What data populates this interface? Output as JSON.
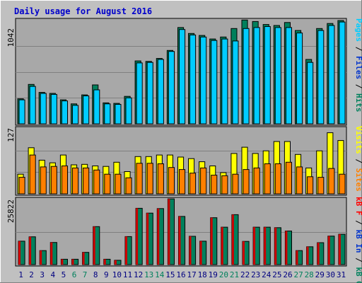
{
  "chart_data": [
    {
      "type": "bar",
      "title": "Daily usage for August 2016",
      "ylabel_max": "1042",
      "ymax": 1042,
      "legend": [
        {
          "label": "Pages",
          "color": "#00ccff"
        },
        {
          "label": "Files",
          "color": "#0033cc"
        },
        {
          "label": "Hits",
          "color": "#00805c"
        }
      ],
      "categories": [
        "1",
        "2",
        "3",
        "4",
        "5",
        "6",
        "7",
        "8",
        "9",
        "10",
        "11",
        "12",
        "13",
        "14",
        "15",
        "16",
        "17",
        "18",
        "19",
        "20",
        "21",
        "22",
        "23",
        "24",
        "25",
        "26",
        "27",
        "28",
        "29",
        "30",
        "31"
      ],
      "weekend_color": "#00805c",
      "weekday_color": "#000080",
      "weekend_days": [
        "6",
        "7",
        "13",
        "14",
        "20",
        "21",
        "27",
        "28"
      ],
      "series": [
        {
          "name": "Hits",
          "color": "#00805c",
          "values": [
            250,
            395,
            315,
            305,
            240,
            200,
            290,
            390,
            210,
            205,
            275,
            630,
            625,
            655,
            735,
            965,
            905,
            885,
            850,
            870,
            955,
            1040,
            1025,
            995,
            985,
            1015,
            935,
            645,
            955,
            1005,
            1035
          ]
        },
        {
          "name": "Files",
          "color": "#00ccff",
          "values": [
            240,
            375,
            305,
            295,
            230,
            185,
            280,
            340,
            200,
            195,
            260,
            610,
            615,
            645,
            725,
            945,
            890,
            870,
            835,
            850,
            830,
            955,
            965,
            975,
            965,
            965,
            910,
            615,
            935,
            985,
            1020
          ]
        }
      ]
    },
    {
      "type": "bar",
      "ylabel_max": "127",
      "ymax": 127,
      "legend": [
        {
          "label": "Visits",
          "color": "#ffff00"
        },
        {
          "label": "Sites",
          "color": "#ff8000"
        }
      ],
      "series": [
        {
          "name": "Visits",
          "color": "#ffff00",
          "values": [
            38,
            89,
            65,
            60,
            75,
            56,
            57,
            54,
            53,
            61,
            43,
            72,
            72,
            75,
            75,
            71,
            68,
            62,
            54,
            41,
            78,
            90,
            78,
            83,
            101,
            101,
            76,
            50,
            83,
            118,
            103
          ]
        },
        {
          "name": "Sites",
          "color": "#ff8000",
          "values": [
            32,
            75,
            52,
            53,
            54,
            50,
            50,
            46,
            38,
            38,
            31,
            59,
            59,
            58,
            51,
            47,
            40,
            50,
            36,
            35,
            38,
            47,
            50,
            58,
            58,
            61,
            52,
            33,
            32,
            49,
            38
          ]
        }
      ]
    },
    {
      "type": "bar",
      "ylabel_max": "25822",
      "ymax": 25822,
      "legend": [
        {
          "label": "kB F",
          "color": "#ff0000"
        },
        {
          "label": "kB In",
          "color": "#0033cc"
        },
        {
          "label": "kB Out",
          "color": "#00805c"
        }
      ],
      "series": [
        {
          "name": "kB Out",
          "color": "#00805c",
          "values": [
            9200,
            10900,
            5500,
            8700,
            2100,
            2100,
            4800,
            14900,
            2100,
            1700,
            11000,
            22100,
            20200,
            22000,
            25800,
            18900,
            11100,
            9200,
            18400,
            14700,
            19600,
            9100,
            14700,
            14700,
            14500,
            13200,
            5500,
            7000,
            8600,
            11200,
            11900
          ]
        }
      ]
    }
  ]
}
